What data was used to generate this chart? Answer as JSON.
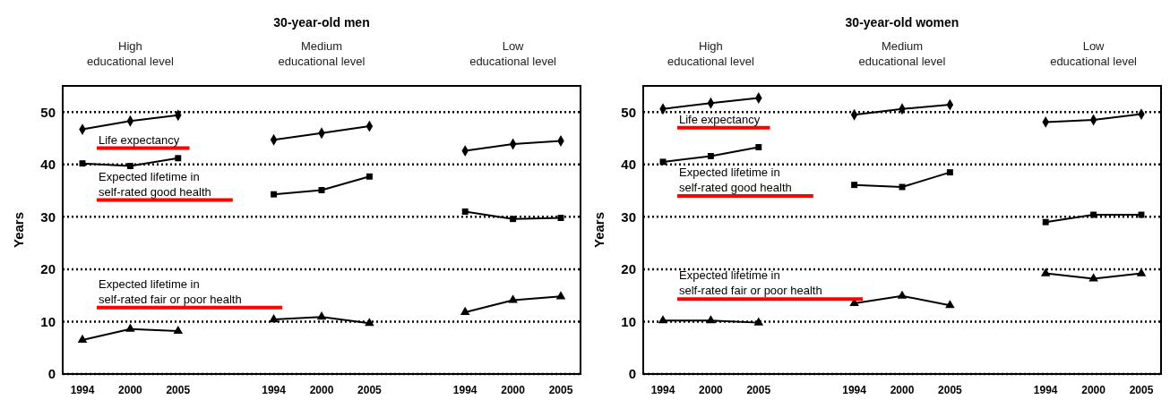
{
  "chart_data": [
    {
      "type": "line",
      "title": "30-year-old men",
      "ylabel": "Years",
      "categories": [
        "1994",
        "2000",
        "2005",
        null,
        "1994",
        "2000",
        "2005",
        null,
        "1994",
        "2000",
        "2005"
      ],
      "ylim": [
        0,
        55
      ],
      "yticks": [
        0,
        10,
        20,
        30,
        40,
        50
      ],
      "grid": "y",
      "annotations": [
        "High\neducational level",
        "Medium\neducational level",
        "Low\neducational level"
      ],
      "series": [
        {
          "name": "Life expectancy",
          "color": "#000000",
          "marker": "diamond",
          "values": [
            46.7,
            48.3,
            49.4,
            null,
            44.7,
            46.0,
            47.3,
            null,
            42.6,
            43.9,
            44.5
          ]
        },
        {
          "name": "Expected lifetime in\nself-rated good health",
          "color": "#000000",
          "marker": "square",
          "values": [
            40.2,
            39.7,
            41.2,
            null,
            34.3,
            35.1,
            37.7,
            null,
            31.0,
            29.6,
            29.8
          ]
        },
        {
          "name": "Expected lifetime in\nself-rated fair or poor health",
          "color": "#000000",
          "marker": "triangle",
          "values": [
            6.5,
            8.6,
            8.2,
            null,
            10.4,
            10.9,
            9.7,
            null,
            11.8,
            14.1,
            14.8
          ]
        }
      ]
    },
    {
      "type": "line",
      "title": "30-year-old women",
      "ylabel": "Years",
      "categories": [
        "1994",
        "2000",
        "2005",
        null,
        "1994",
        "2000",
        "2005",
        null,
        "1994",
        "2000",
        "2005"
      ],
      "ylim": [
        0,
        55
      ],
      "yticks": [
        0,
        10,
        20,
        30,
        40,
        50
      ],
      "grid": "y",
      "annotations": [
        "High\neducational level",
        "Medium\neducational level",
        "Low\neducational level"
      ],
      "series": [
        {
          "name": "Life expectancy",
          "color": "#000000",
          "marker": "diamond",
          "values": [
            50.6,
            51.7,
            52.7,
            null,
            49.5,
            50.6,
            51.4,
            null,
            48.1,
            48.5,
            49.6
          ]
        },
        {
          "name": "Expected lifetime in\nself-rated good health",
          "color": "#000000",
          "marker": "square",
          "values": [
            40.5,
            41.6,
            43.3,
            null,
            36.1,
            35.7,
            38.5,
            null,
            29.0,
            30.4,
            30.4
          ]
        },
        {
          "name": "Expected lifetime in\nself-rated fair or poor health",
          "color": "#000000",
          "marker": "triangle",
          "values": [
            10.2,
            10.2,
            9.8,
            null,
            13.5,
            14.9,
            13.1,
            null,
            19.2,
            18.2,
            19.2
          ]
        }
      ]
    }
  ]
}
